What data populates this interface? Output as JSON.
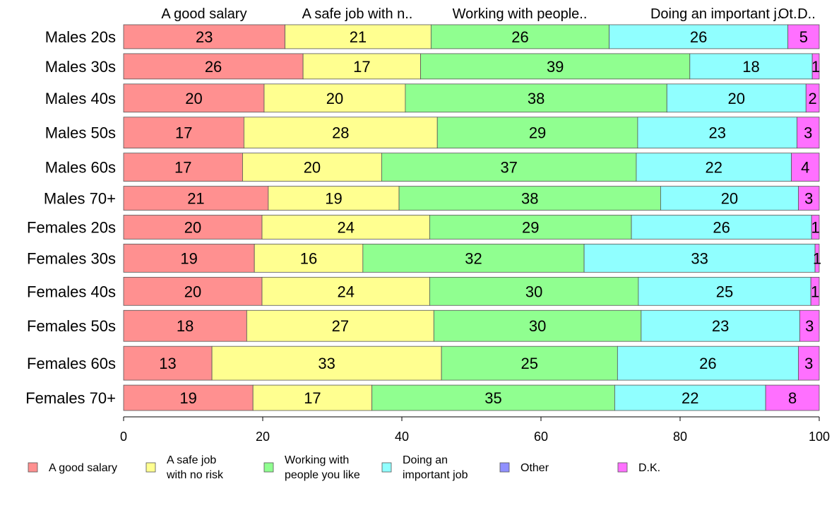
{
  "chart_data": {
    "type": "bar",
    "orientation": "horizontal",
    "stacked": true,
    "xlim": [
      0,
      100
    ],
    "x_ticks": [
      "0",
      "20",
      "40",
      "60",
      "80",
      "100"
    ],
    "column_headers": [
      "A good salary",
      "A safe job with n..",
      "Working with people..",
      "Doing an important j..",
      "Ot..",
      "D.."
    ],
    "categories": [
      "Males 20s",
      "Males 30s",
      "Males 40s",
      "Males 50s",
      "Males 60s",
      "Males 70+",
      "Females 20s",
      "Females 30s",
      "Females 40s",
      "Females 50s",
      "Females 60s",
      "Females 70+"
    ],
    "bar_weights": [
      0.85,
      0.9,
      1.0,
      1.1,
      1.0,
      0.85,
      0.85,
      1.0,
      1.0,
      1.1,
      1.2,
      0.9
    ],
    "series": [
      {
        "name": "A good salary",
        "legend_label": "A good salary",
        "color": "#ff9090",
        "values": [
          23.2,
          25.8,
          20.2,
          17.3,
          17.1,
          20.8,
          19.9,
          18.8,
          19.9,
          17.7,
          12.7,
          18.6
        ]
      },
      {
        "name": "A safe job with no risk",
        "legend_label": "A safe job\nwith no risk",
        "color": "#ffff90",
        "values": [
          21.0,
          16.9,
          20.3,
          27.8,
          20.0,
          18.8,
          24.1,
          15.6,
          24.1,
          26.9,
          33.0,
          17.1
        ]
      },
      {
        "name": "Working with people you like",
        "legend_label": "Working with\npeople you like",
        "color": "#90ff90",
        "values": [
          25.6,
          38.7,
          37.6,
          28.8,
          36.6,
          37.6,
          29.0,
          31.8,
          30.0,
          29.8,
          25.3,
          34.9
        ]
      },
      {
        "name": "Doing an important job",
        "legend_label": "Doing an\nimportant job",
        "color": "#90ffff",
        "values": [
          25.7,
          17.6,
          20.0,
          22.9,
          22.3,
          19.8,
          25.9,
          33.2,
          24.8,
          22.8,
          26.0,
          21.7
        ]
      },
      {
        "name": "Other",
        "legend_label": "Other",
        "color": "#9090ff",
        "values": [
          0,
          0,
          0,
          0,
          0,
          0,
          0,
          0,
          0,
          0,
          0,
          0
        ]
      },
      {
        "name": "D.K.",
        "legend_label": "D.K.",
        "color": "#ff70ff",
        "values": [
          4.5,
          1.0,
          1.9,
          3.2,
          4.0,
          3.0,
          1.1,
          0.6,
          1.2,
          2.8,
          3.0,
          7.7
        ]
      }
    ],
    "labels": [
      [
        "23",
        "21",
        "26",
        "26",
        "",
        "5"
      ],
      [
        "26",
        "17",
        "39",
        "18",
        "",
        "1"
      ],
      [
        "20",
        "20",
        "38",
        "20",
        "",
        "2"
      ],
      [
        "17",
        "28",
        "29",
        "23",
        "",
        "3"
      ],
      [
        "17",
        "20",
        "37",
        "22",
        "",
        "4"
      ],
      [
        "21",
        "19",
        "38",
        "20",
        "",
        "3"
      ],
      [
        "20",
        "24",
        "29",
        "26",
        "",
        "1"
      ],
      [
        "19",
        "16",
        "32",
        "33",
        "",
        "1"
      ],
      [
        "20",
        "24",
        "30",
        "25",
        "",
        "1"
      ],
      [
        "18",
        "27",
        "30",
        "23",
        "",
        "3"
      ],
      [
        "13",
        "33",
        "25",
        "26",
        "",
        "3"
      ],
      [
        "19",
        "17",
        "35",
        "22",
        "",
        "8"
      ]
    ],
    "grid": false,
    "legend_position": "bottom"
  }
}
